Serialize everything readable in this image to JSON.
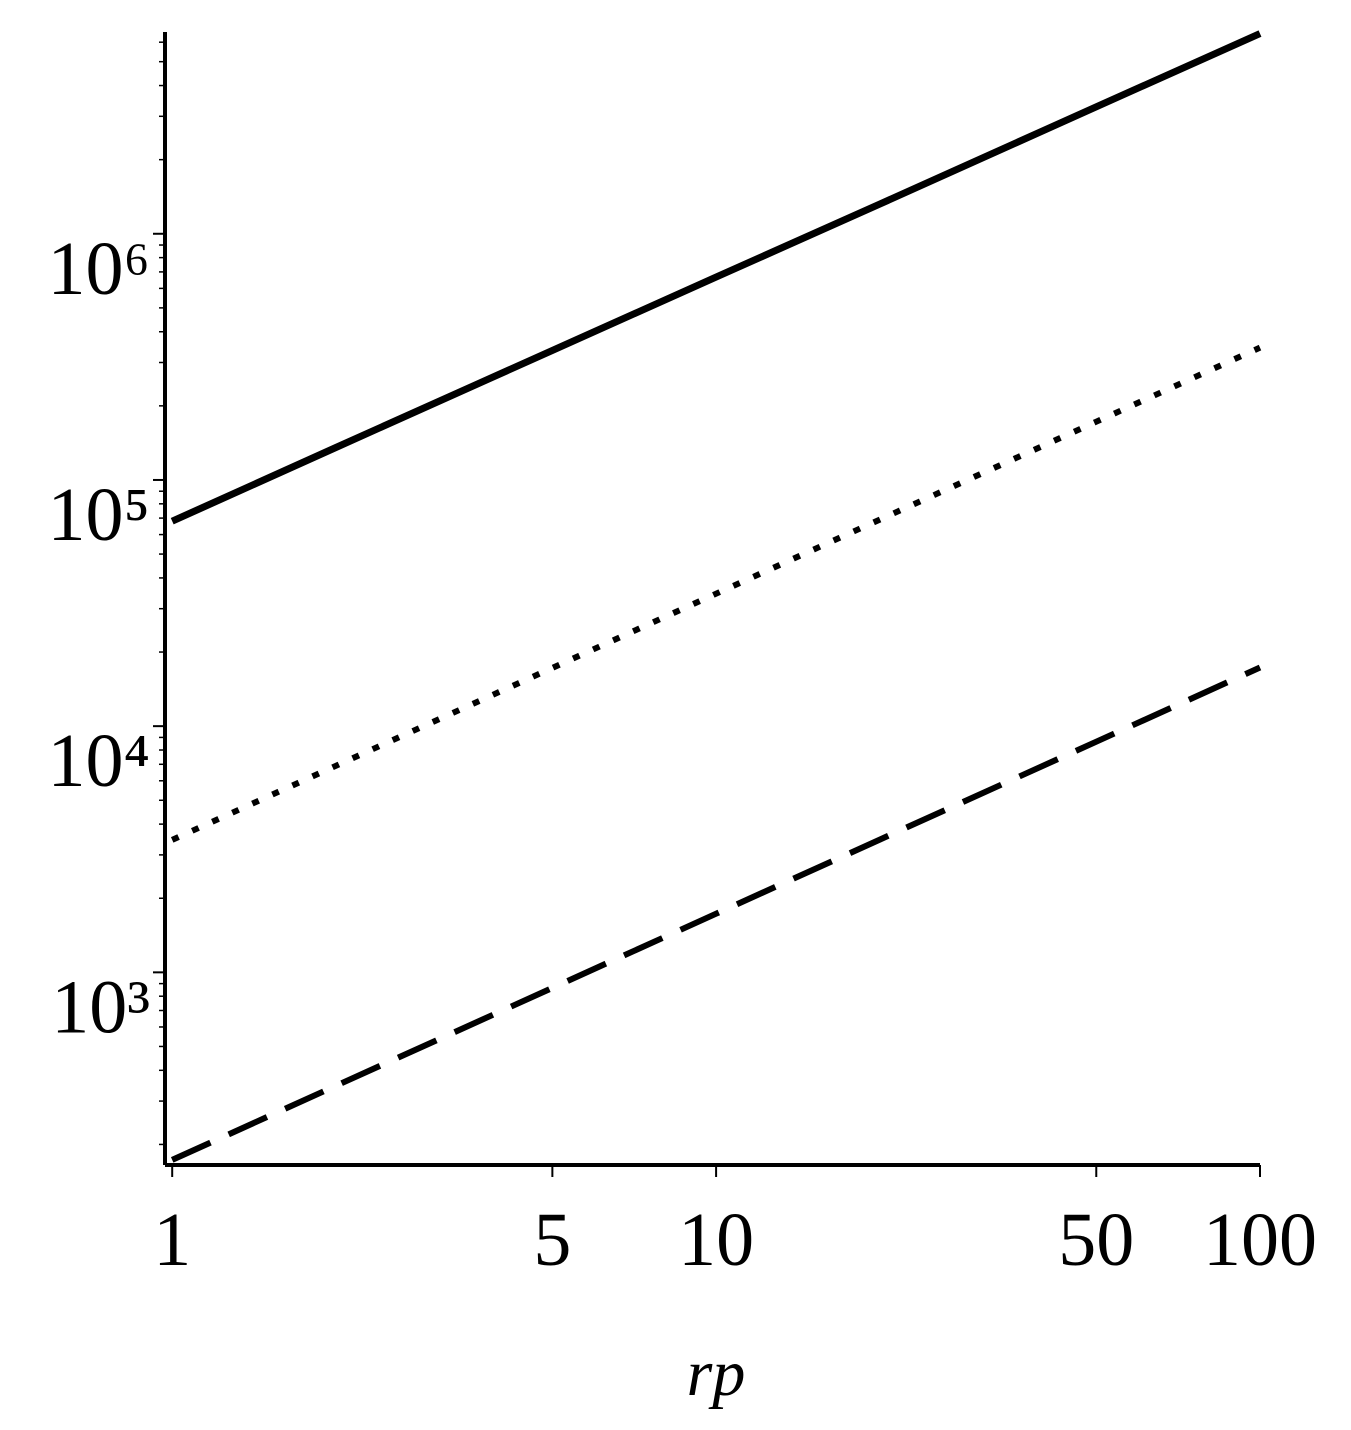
{
  "chart_data": {
    "type": "line",
    "xlabel": "rp",
    "xscale": "log",
    "yscale": "log",
    "x": [
      1,
      2,
      5,
      10,
      20,
      50,
      100
    ],
    "series": [
      {
        "color": "#000000",
        "style": "solid",
        "values": [
          68000,
          135500,
          336000,
          667000,
          1320000,
          3280000,
          6500000
        ]
      },
      {
        "color": "#000000",
        "style": "dotted",
        "values": [
          3450,
          6900,
          17250,
          34500,
          69000,
          172500,
          345000
        ]
      },
      {
        "color": "#000000",
        "style": "dashed",
        "values": [
          173,
          346,
          865,
          1730,
          3460,
          8650,
          17300
        ]
      }
    ],
    "xlim": [
      0.97,
      100
    ],
    "ylim": [
      165,
      6600000
    ],
    "xticks": [
      1,
      5,
      10,
      50,
      100
    ],
    "yticks": [
      {
        "value": 1000,
        "label": "10³"
      },
      {
        "value": 10000,
        "label": "10⁴"
      },
      {
        "value": 100000,
        "label": "10⁵"
      },
      {
        "value": 1000000,
        "label": "10⁶"
      }
    ],
    "yminorticks": [
      200,
      300,
      400,
      500,
      600,
      700,
      800,
      900,
      2000,
      3000,
      4000,
      5000,
      6000,
      7000,
      8000,
      9000,
      20000,
      30000,
      40000,
      50000,
      60000,
      70000,
      80000,
      90000,
      200000,
      300000,
      400000,
      500000,
      600000,
      700000,
      800000,
      900000,
      2000000,
      3000000,
      4000000,
      5000000,
      6000000
    ]
  }
}
